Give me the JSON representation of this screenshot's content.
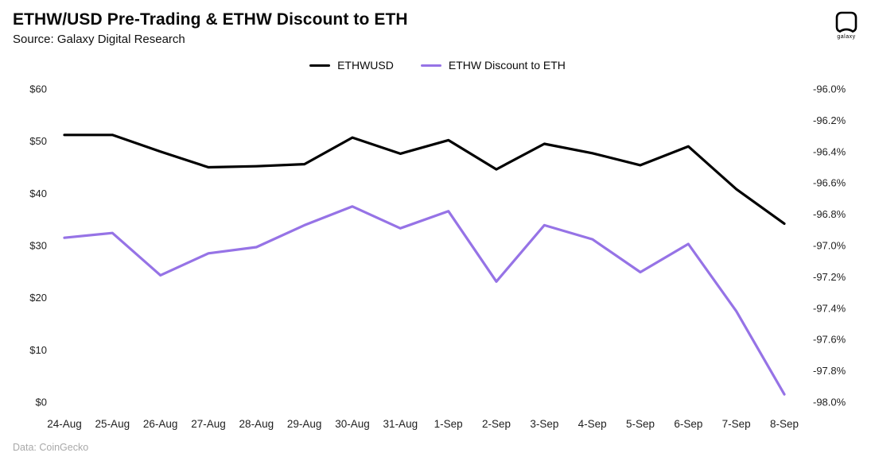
{
  "header": {
    "title": "ETHW/USD Pre-Trading & ETHW Discount to ETH",
    "source": "Source: Galaxy Digital Research",
    "logo_label": "galaxy"
  },
  "legend": {
    "items": [
      {
        "label": "ETHWUSD",
        "color": "#000000"
      },
      {
        "label": "ETHW Discount to ETH",
        "color": "#9673e6"
      }
    ]
  },
  "footer": {
    "credit": "Data: CoinGecko"
  },
  "chart_data": {
    "type": "line",
    "title": "ETHW/USD Pre-Trading & ETHW Discount to ETH",
    "grid": false,
    "legend_position": "top",
    "categories": [
      "24-Aug",
      "25-Aug",
      "26-Aug",
      "27-Aug",
      "28-Aug",
      "29-Aug",
      "30-Aug",
      "31-Aug",
      "1-Sep",
      "2-Sep",
      "3-Sep",
      "4-Sep",
      "5-Sep",
      "6-Sep",
      "7-Sep",
      "8-Sep"
    ],
    "series": [
      {
        "name": "ETHWUSD",
        "axis": "left",
        "color": "#000000",
        "values": [
          51.2,
          51.2,
          48.0,
          45.0,
          45.2,
          45.6,
          50.7,
          47.6,
          50.2,
          44.6,
          49.5,
          47.7,
          45.4,
          49.0,
          40.8,
          34.2
        ]
      },
      {
        "name": "ETHW Discount to ETH",
        "axis": "right",
        "color": "#9673e6",
        "values": [
          -96.95,
          -96.92,
          -97.19,
          -97.05,
          -97.01,
          -96.87,
          -96.75,
          -96.89,
          -96.78,
          -97.23,
          -96.87,
          -96.96,
          -97.17,
          -96.99,
          -97.42,
          -97.95
        ]
      }
    ],
    "left_axis": {
      "min": 0,
      "max": 60,
      "ticks": [
        {
          "label": "$60",
          "value": 60
        },
        {
          "label": "$50",
          "value": 50
        },
        {
          "label": "$40",
          "value": 40
        },
        {
          "label": "$30",
          "value": 30
        },
        {
          "label": "$20",
          "value": 20
        },
        {
          "label": "$10",
          "value": 10
        },
        {
          "label": "$0",
          "value": 0
        }
      ]
    },
    "right_axis": {
      "min": -98.0,
      "max": -96.0,
      "ticks": [
        {
          "label": "-96.0%",
          "value": -96.0
        },
        {
          "label": "-96.2%",
          "value": -96.2
        },
        {
          "label": "-96.4%",
          "value": -96.4
        },
        {
          "label": "-96.6%",
          "value": -96.6
        },
        {
          "label": "-96.8%",
          "value": -96.8
        },
        {
          "label": "-97.0%",
          "value": -97.0
        },
        {
          "label": "-97.2%",
          "value": -97.2
        },
        {
          "label": "-97.4%",
          "value": -97.4
        },
        {
          "label": "-97.6%",
          "value": -97.6
        },
        {
          "label": "-97.8%",
          "value": -97.8
        },
        {
          "label": "-98.0%",
          "value": -98.0
        }
      ]
    }
  }
}
